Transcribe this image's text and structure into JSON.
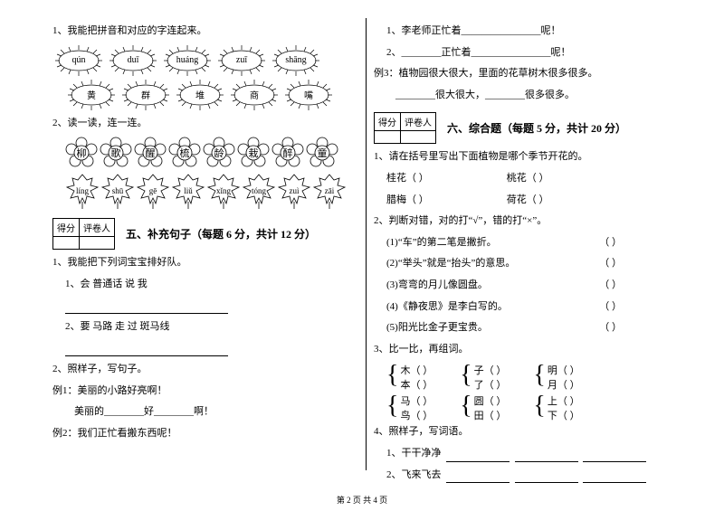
{
  "colors": {
    "text": "#000000",
    "bg": "#ffffff",
    "line": "#000000"
  },
  "left": {
    "q1_title": "1、我能把拼音和对应的字连起来。",
    "suns_row1": [
      "qún",
      "duī",
      "huáng",
      "zuī",
      "shāng"
    ],
    "suns_row2": [
      "黄",
      "群",
      "堆",
      "商",
      "嘴"
    ],
    "q2_title": "2、读一读，连一连。",
    "flowers": [
      "柳",
      "歌",
      "醒",
      "梳",
      "龄",
      "栽",
      "醉",
      "童"
    ],
    "leaves": [
      "líng",
      "shū",
      "gē",
      "liǔ",
      "xǐng",
      "tóng",
      "zuì",
      "zāi"
    ],
    "section5_title": "五、补充句子（每题 6 分，共计 12 分）",
    "score_labels": {
      "a": "得分",
      "b": "评卷人"
    },
    "s5_q1": "1、我能把下列词宝宝排好队。",
    "s5_q1_1": "1、会    普通话    说    我",
    "s5_q1_2": "2、要    马路    走    过    斑马线",
    "s5_q2": "2、照样子，写句子。",
    "s5_ex1": "例1：美丽的小路好亮啊！",
    "s5_ex1_blank": "美丽的________好________啊！",
    "s5_ex2": "例2：我们正忙看搬东西呢！"
  },
  "right": {
    "r1": "1、李老师正忙着________________呢！",
    "r2": "2、________正忙着________________呢！",
    "r_ex3": "例3：植物园很大很大，里面的花草树木很多很多。",
    "r_ex3_blank": "________很大很大，________很多很多。",
    "score_labels": {
      "a": "得分",
      "b": "评卷人"
    },
    "section6_title": "六、综合题（每题 5 分，共计 20 分）",
    "s6_q1": "1、请在括号里写出下面植物是哪个季节开花的。",
    "plants": [
      {
        "a": "桂花（        ）",
        "b": "桃花（        ）"
      },
      {
        "a": "腊梅（        ）",
        "b": "荷花（        ）"
      }
    ],
    "s6_q2": "2、判断对错，对的打“√”，错的打“×”。",
    "judgments": [
      "(1)“车”的第二笔是撇折。",
      "(2)“举头”就是“抬头”的意思。",
      "(3)弯弯的月儿像圆盘。",
      "(4)《静夜思》是李白写的。",
      "(5)阳光比金子更宝贵。"
    ],
    "s6_q3": "3、比一比，再组词。",
    "brackets": [
      [
        {
          "top": "木（    ）",
          "bot": "本（    ）"
        },
        {
          "top": "子（    ）",
          "bot": "了（    ）"
        },
        {
          "top": "明（    ）",
          "bot": "月（    ）"
        }
      ],
      [
        {
          "top": "马（    ）",
          "bot": "鸟（    ）"
        },
        {
          "top": "圆（    ）",
          "bot": "田（    ）"
        },
        {
          "top": "上（    ）",
          "bot": "下（    ）"
        }
      ]
    ],
    "s6_q4": "4、照样子，写词语。",
    "s6_q4_1": "1、干干净净",
    "s6_q4_2": "2、飞来飞去"
  },
  "footer": "第 2 页  共 4 页"
}
